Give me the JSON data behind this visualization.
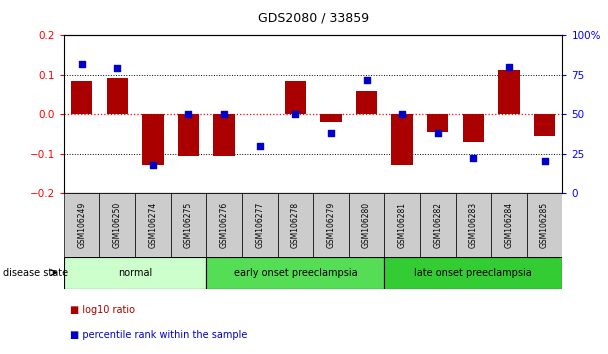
{
  "title": "GDS2080 / 33859",
  "samples": [
    "GSM106249",
    "GSM106250",
    "GSM106274",
    "GSM106275",
    "GSM106276",
    "GSM106277",
    "GSM106278",
    "GSM106279",
    "GSM106280",
    "GSM106281",
    "GSM106282",
    "GSM106283",
    "GSM106284",
    "GSM106285"
  ],
  "log10_ratio": [
    0.083,
    0.093,
    -0.13,
    -0.105,
    -0.105,
    0.0,
    0.083,
    -0.02,
    0.058,
    -0.13,
    -0.045,
    -0.07,
    0.112,
    -0.055
  ],
  "percentile_rank": [
    82,
    79,
    18,
    50,
    50,
    30,
    50,
    38,
    72,
    50,
    38,
    22,
    80,
    20
  ],
  "groups": [
    {
      "label": "normal",
      "start": 0,
      "end": 3,
      "color": "#ccffcc"
    },
    {
      "label": "early onset preeclampsia",
      "start": 4,
      "end": 8,
      "color": "#55dd55"
    },
    {
      "label": "late onset preeclampsia",
      "start": 9,
      "end": 13,
      "color": "#33cc33"
    }
  ],
  "ylim_left": [
    -0.2,
    0.2
  ],
  "ylim_right": [
    0,
    100
  ],
  "yticks_left": [
    -0.2,
    -0.1,
    0.0,
    0.1,
    0.2
  ],
  "yticks_right": [
    0,
    25,
    50,
    75,
    100
  ],
  "bar_color": "#aa0000",
  "dot_color": "#0000cc",
  "bg_color": "#ffffff",
  "legend_items": [
    {
      "label": "log10 ratio",
      "color": "#aa0000"
    },
    {
      "label": "percentile rank within the sample",
      "color": "#0000cc"
    }
  ],
  "disease_state_label": "disease state"
}
